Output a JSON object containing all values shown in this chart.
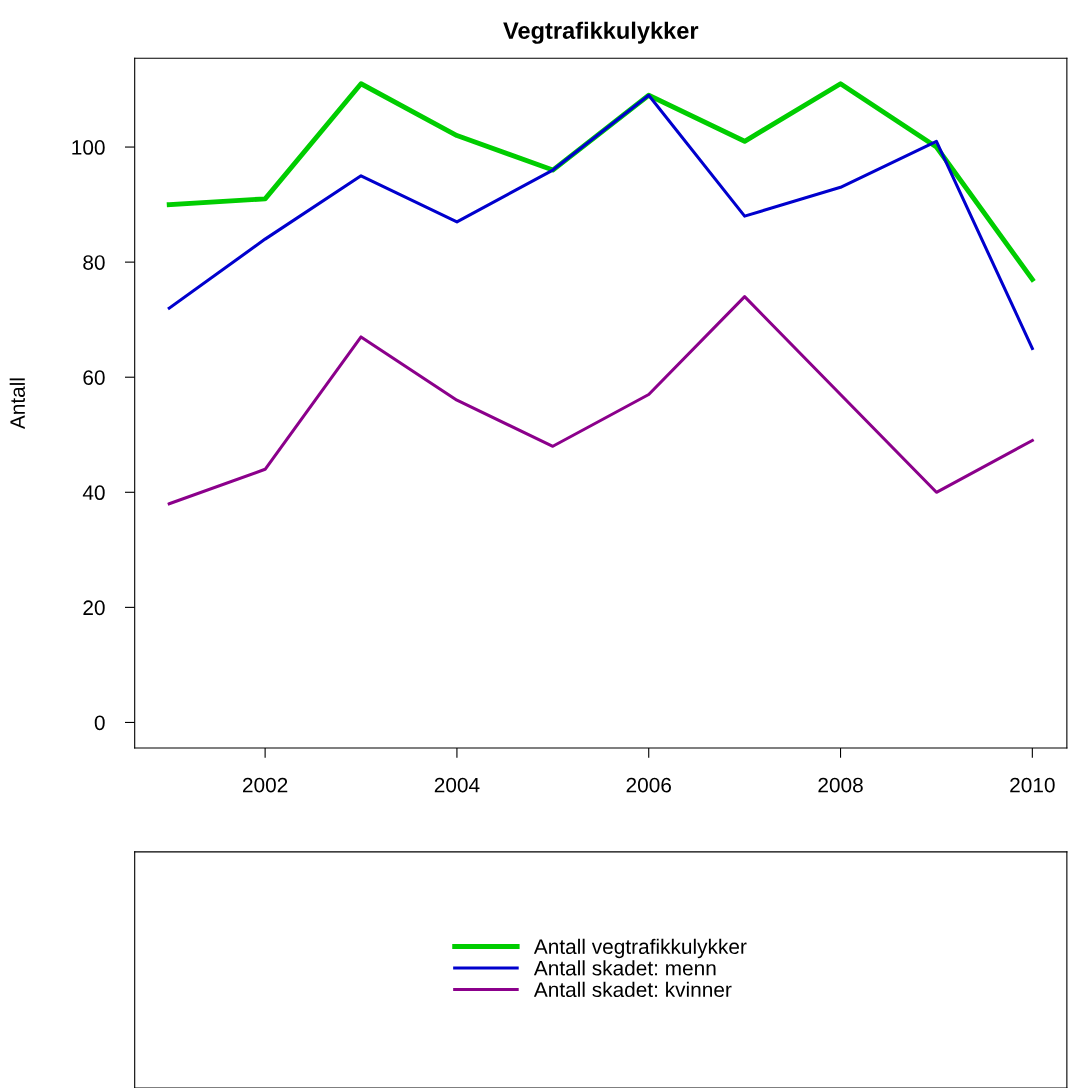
{
  "chart_data": {
    "type": "line",
    "title": "Vegtrafikkulykker",
    "ylabel": "Antall",
    "x": [
      2001,
      2002,
      2003,
      2004,
      2005,
      2006,
      2007,
      2008,
      2009,
      2010
    ],
    "series": [
      {
        "name": "Antall vegtrafikkulykker",
        "color": "#00cd00",
        "values": [
          90,
          91,
          111,
          102,
          96,
          109,
          101,
          111,
          100,
          77
        ]
      },
      {
        "name": "Antall skadet: menn",
        "color": "#0000cd",
        "values": [
          72,
          84,
          95,
          87,
          96,
          109,
          88,
          93,
          101,
          65
        ]
      },
      {
        "name": "Antall skadet: kvinner",
        "color": "#8b008b",
        "values": [
          38,
          44,
          67,
          56,
          48,
          57,
          74,
          57,
          40,
          49
        ]
      }
    ],
    "xlim": [
      2000.64,
      2010.36
    ],
    "ylim": [
      -4.44,
      115.44
    ],
    "xticks": [
      2002,
      2004,
      2006,
      2008,
      2010
    ],
    "yticks": [
      0,
      20,
      40,
      60,
      80,
      100
    ],
    "grid": false,
    "legend": "bottom",
    "marker": "none",
    "line_style": "solid"
  }
}
